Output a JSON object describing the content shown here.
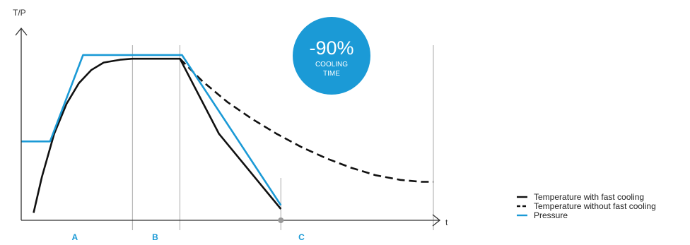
{
  "chart_data": {
    "type": "line",
    "title": "",
    "ylabel": "T/P",
    "xlabel": "t",
    "grid": false,
    "legend_position": "bottom-right",
    "xlim": [
      0,
      100
    ],
    "ylim": [
      0,
      100
    ],
    "phase_boundaries": [
      27,
      38.5,
      63,
      100
    ],
    "phases": [
      {
        "label": "A",
        "x": 13
      },
      {
        "label": "B",
        "x": 32.5
      },
      {
        "label": "C",
        "x": 68
      }
    ],
    "badge": {
      "value": "-90%",
      "line1": "COOLING",
      "line2": "TIME",
      "color": "#1b9ad6"
    },
    "series": [
      {
        "name": "Temperature with fast cooling",
        "style": "solid",
        "color": "#111111",
        "x": [
          3,
          5,
          8,
          11,
          14,
          17,
          20,
          24,
          27,
          30,
          38.5,
          48,
          63
        ],
        "y": [
          4,
          23,
          46,
          62,
          73,
          80,
          84,
          85.5,
          86,
          86,
          86,
          46,
          6
        ]
      },
      {
        "name": "Temperature without fast cooling",
        "style": "dashed",
        "color": "#111111",
        "x": [
          38.5,
          44,
          50,
          56,
          62,
          68,
          74,
          80,
          86,
          92,
          97,
          100
        ],
        "y": [
          86,
          74,
          63,
          54,
          46,
          39,
          33,
          28,
          24,
          21.5,
          20.5,
          20.5
        ]
      },
      {
        "name": "Pressure",
        "style": "solid",
        "color": "#1b9ad6",
        "x": [
          0,
          7,
          15,
          39,
          63
        ],
        "y": [
          42,
          42,
          88,
          88,
          8
        ]
      }
    ]
  }
}
